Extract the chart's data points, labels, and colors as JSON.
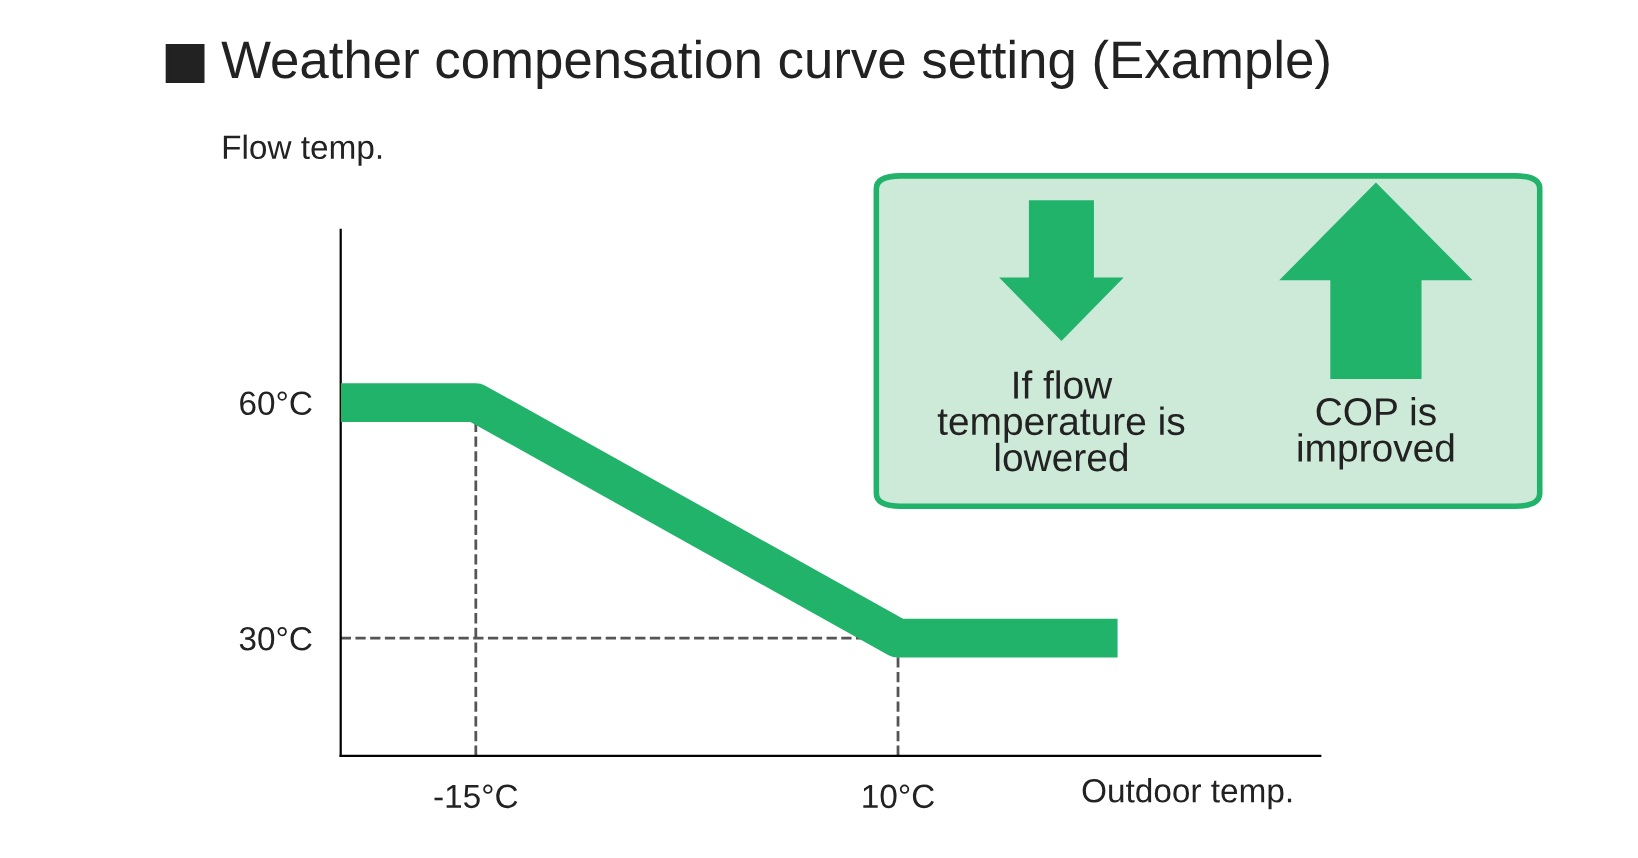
{
  "chart_data": {
    "type": "line",
    "title": "Weather compensation curve setting (Example)",
    "xlabel": "Outdoor temp.",
    "ylabel": "Flow temp.",
    "series": [
      {
        "color": "#22b36b",
        "x": [
          -23,
          -15,
          10,
          23
        ],
        "values": [
          60,
          60,
          30,
          30
        ]
      }
    ],
    "xlim": [
      -23,
      35
    ],
    "ylim": [
      15,
      82
    ],
    "xticks": [
      {
        "value": -15,
        "label": "-15°C"
      },
      {
        "value": 10,
        "label": "10°C"
      }
    ],
    "yticks": [
      {
        "value": 30,
        "label": "30°C"
      },
      {
        "value": 60,
        "label": "60°C"
      }
    ],
    "ref_lines": [
      {
        "axis": "x",
        "value": -15,
        "color": "#555555",
        "line_style": "dashed"
      },
      {
        "axis": "x",
        "value": 10,
        "color": "#555555",
        "line_style": "dashed"
      },
      {
        "axis": "y",
        "value": 30,
        "color": "#555555",
        "line_style": "dashed"
      }
    ],
    "annotations": [
      "If flow\ntemperature is\nlowered",
      "COP is\nimproved"
    ],
    "grid": false,
    "legend": false,
    "marker": "none",
    "line_style": "solid"
  }
}
